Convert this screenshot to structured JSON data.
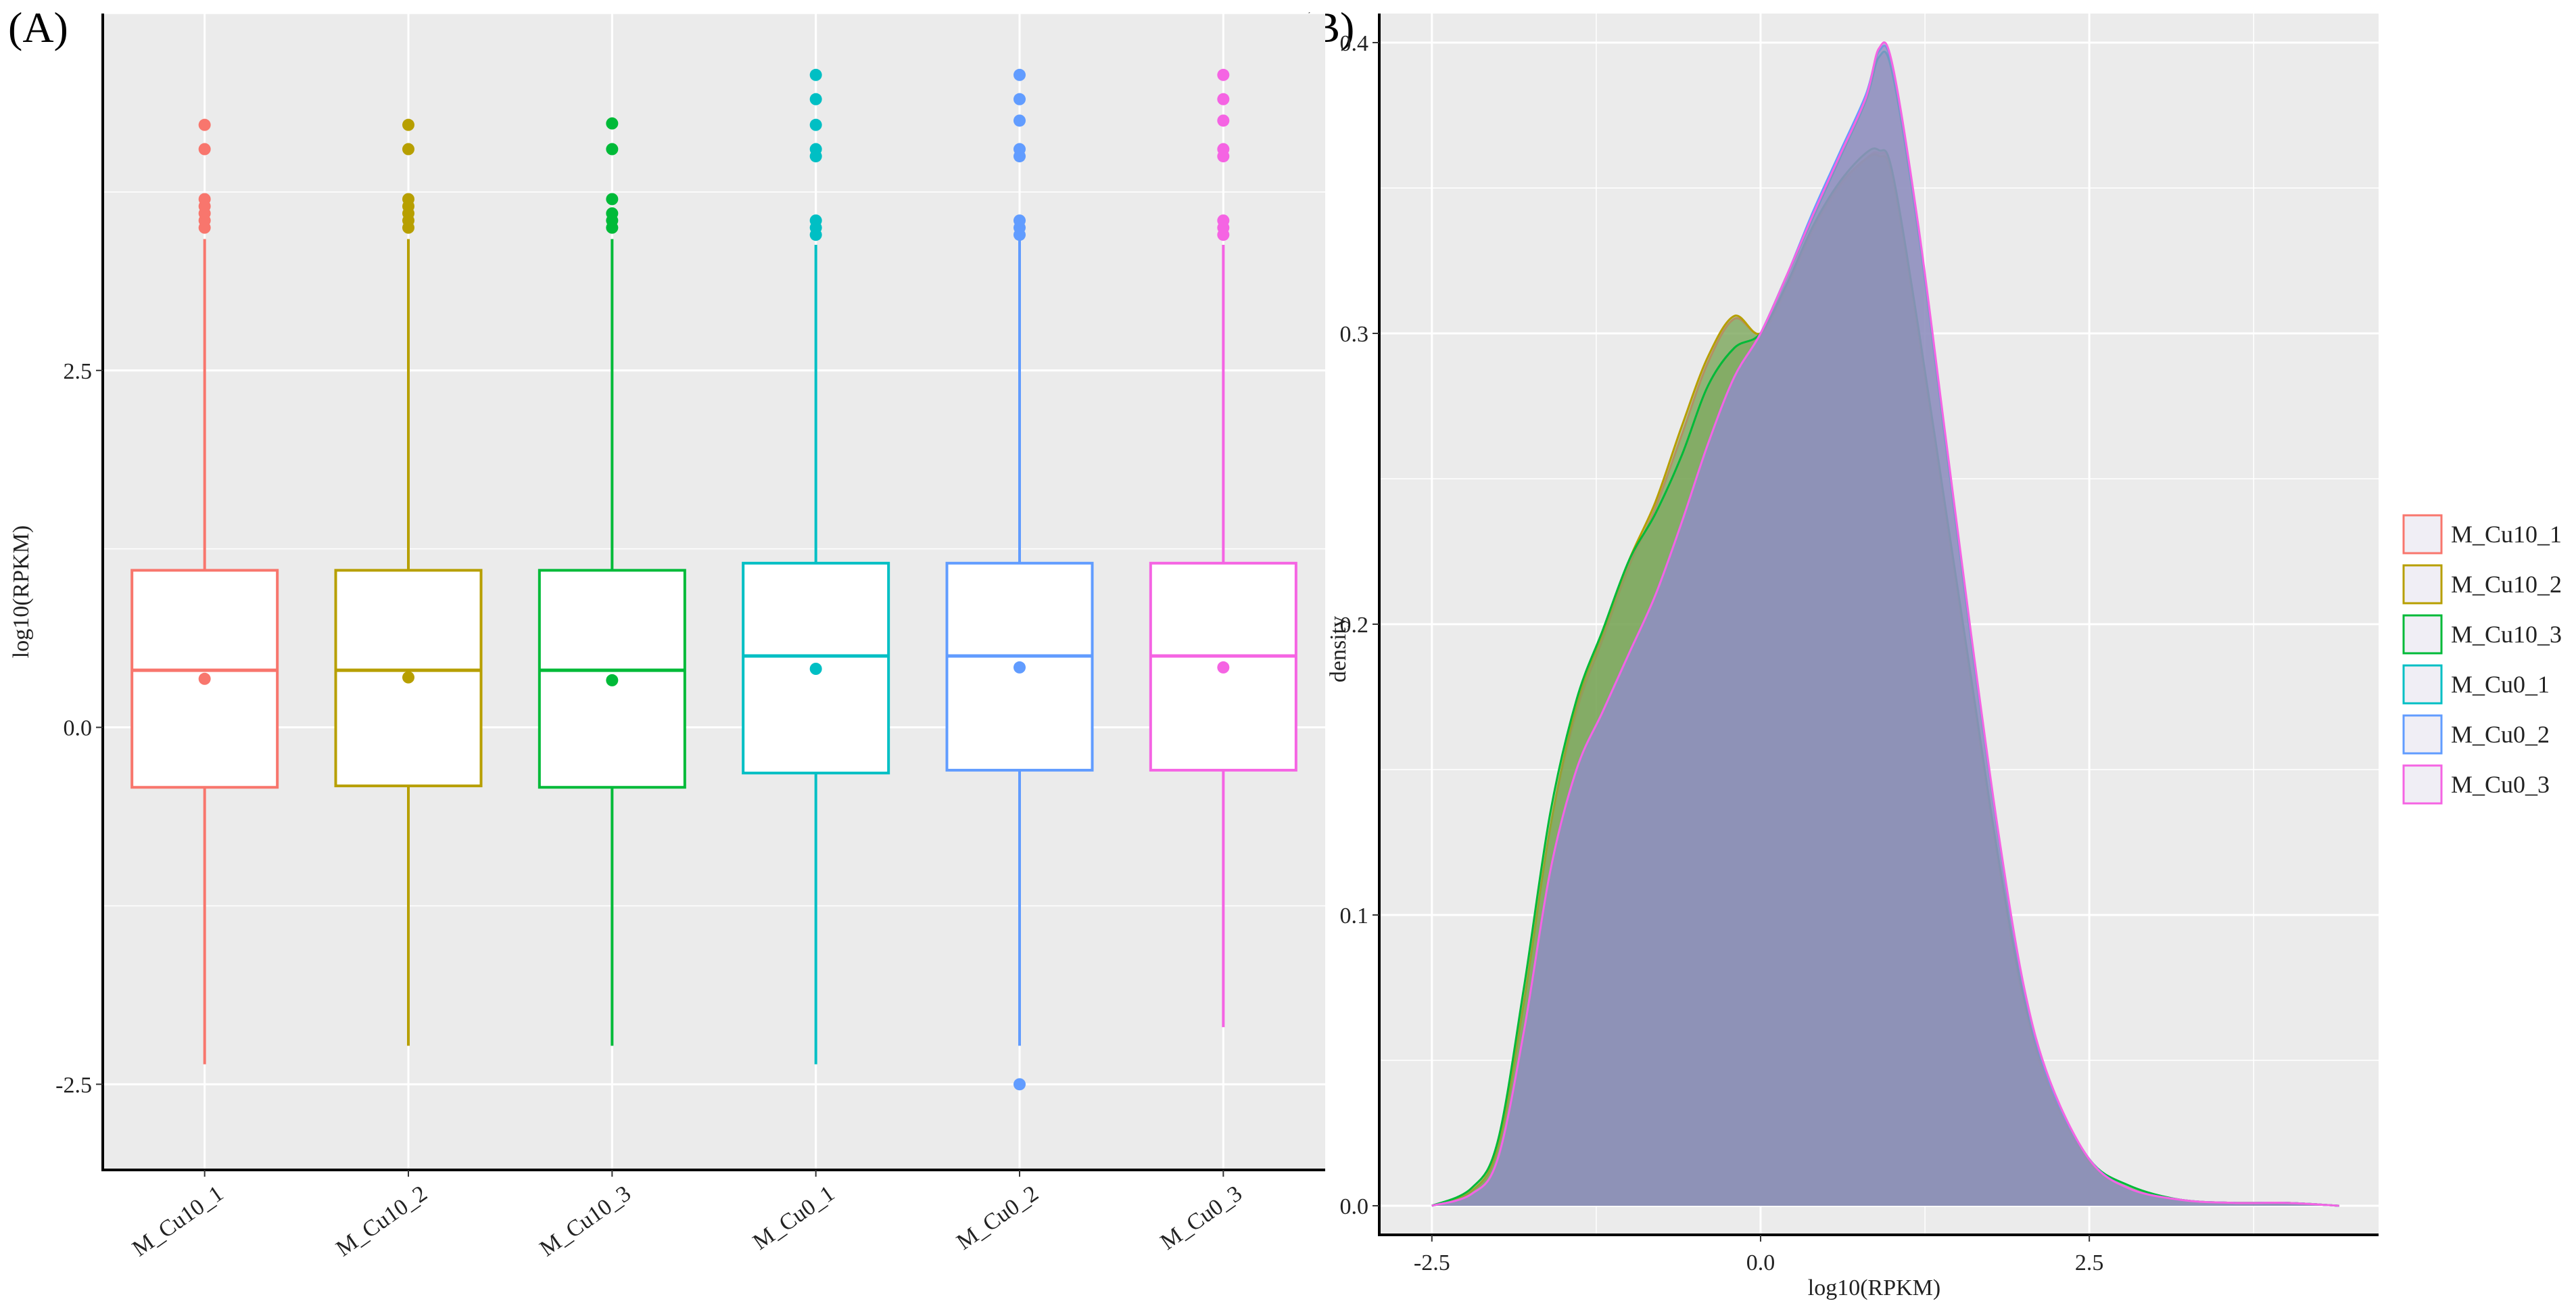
{
  "panels": {
    "a_label": "(A)",
    "b_label": "(B)"
  },
  "chart_data": [
    {
      "type": "box",
      "panel": "(A)",
      "xlabel": "",
      "ylabel": "log10(RPKM)",
      "ylim": [
        -3.1,
        5.0
      ],
      "yticks": [
        -2.5,
        0.0,
        2.5
      ],
      "ytick_labels": [
        "-2.5",
        "0.0",
        "2.5"
      ],
      "grid": true,
      "background": "#ebebeb",
      "categories": [
        "M_Cu10_1",
        "M_Cu10_2",
        "M_Cu10_3",
        "M_Cu0_1",
        "M_Cu0_2",
        "M_Cu0_3"
      ],
      "colors": [
        "#F8766D",
        "#B79F00",
        "#00BA38",
        "#00BFC4",
        "#619CFF",
        "#F564E3"
      ],
      "boxes": [
        {
          "name": "M_Cu10_1",
          "q1": -0.42,
          "median": 0.4,
          "q3": 1.1,
          "whisker_low": -2.36,
          "whisker_high": 3.42,
          "mean": 0.34,
          "outliers": [
            3.5,
            3.55,
            3.6,
            3.65,
            3.7,
            4.05,
            4.22
          ]
        },
        {
          "name": "M_Cu10_2",
          "q1": -0.41,
          "median": 0.4,
          "q3": 1.1,
          "whisker_low": -2.23,
          "whisker_high": 3.42,
          "mean": 0.35,
          "outliers": [
            3.5,
            3.55,
            3.6,
            3.65,
            3.7,
            4.05,
            4.22
          ]
        },
        {
          "name": "M_Cu10_3",
          "q1": -0.42,
          "median": 0.4,
          "q3": 1.1,
          "whisker_low": -2.23,
          "whisker_high": 3.42,
          "mean": 0.33,
          "outliers": [
            3.5,
            3.55,
            3.6,
            3.7,
            4.05,
            4.23
          ]
        },
        {
          "name": "M_Cu0_1",
          "q1": -0.32,
          "median": 0.5,
          "q3": 1.15,
          "whisker_low": -2.36,
          "whisker_high": 3.38,
          "mean": 0.41,
          "outliers": [
            3.45,
            3.5,
            3.55,
            4.0,
            4.05,
            4.22,
            4.4,
            4.57
          ]
        },
        {
          "name": "M_Cu0_2",
          "q1": -0.3,
          "median": 0.5,
          "q3": 1.15,
          "whisker_low": -2.23,
          "whisker_high": 3.42,
          "mean": 0.42,
          "outliers": [
            3.45,
            3.5,
            3.55,
            4.0,
            4.05,
            4.25,
            4.4,
            4.57,
            -2.5
          ]
        },
        {
          "name": "M_Cu0_3",
          "q1": -0.3,
          "median": 0.5,
          "q3": 1.15,
          "whisker_low": -2.1,
          "whisker_high": 3.38,
          "mean": 0.42,
          "outliers": [
            3.45,
            3.5,
            3.55,
            4.0,
            4.05,
            4.25,
            4.4,
            4.57
          ]
        }
      ]
    },
    {
      "type": "area",
      "panel": "(B)",
      "xlabel": "log10(RPKM)",
      "ylabel": "density",
      "xlim": [
        -2.9,
        4.7
      ],
      "ylim": [
        -0.01,
        0.41
      ],
      "xticks": [
        -2.5,
        0.0,
        2.5
      ],
      "xtick_labels": [
        "-2.5",
        "0.0",
        "2.5"
      ],
      "yticks": [
        0.0,
        0.1,
        0.2,
        0.3,
        0.4
      ],
      "ytick_labels": [
        "0.0",
        "0.1",
        "0.2",
        "0.3",
        "0.4"
      ],
      "grid": true,
      "background": "#ebebeb",
      "legend_position": "right",
      "fill_color": "#8f8fbf",
      "x": [
        -2.5,
        -2.2,
        -2.0,
        -1.8,
        -1.6,
        -1.4,
        -1.2,
        -1.0,
        -0.8,
        -0.6,
        -0.4,
        -0.2,
        0.0,
        0.2,
        0.4,
        0.6,
        0.8,
        0.9,
        1.0,
        1.2,
        1.4,
        1.6,
        1.8,
        2.0,
        2.2,
        2.5,
        2.8,
        3.2,
        3.6,
        4.0,
        4.4
      ],
      "series": [
        {
          "name": "M_Cu10_1",
          "color": "#F8766D",
          "values": [
            0.0,
            0.005,
            0.02,
            0.07,
            0.13,
            0.17,
            0.195,
            0.22,
            0.24,
            0.265,
            0.29,
            0.305,
            0.3,
            0.315,
            0.335,
            0.35,
            0.36,
            0.362,
            0.355,
            0.3,
            0.24,
            0.18,
            0.12,
            0.07,
            0.04,
            0.015,
            0.006,
            0.002,
            0.001,
            0.001,
            0.0
          ]
        },
        {
          "name": "M_Cu10_2",
          "color": "#B79F00",
          "values": [
            0.0,
            0.005,
            0.02,
            0.07,
            0.13,
            0.172,
            0.197,
            0.222,
            0.242,
            0.268,
            0.292,
            0.306,
            0.3,
            0.316,
            0.336,
            0.351,
            0.36,
            0.361,
            0.354,
            0.3,
            0.24,
            0.18,
            0.12,
            0.07,
            0.04,
            0.015,
            0.006,
            0.002,
            0.001,
            0.001,
            0.0
          ]
        },
        {
          "name": "M_Cu10_3",
          "color": "#00BA38",
          "values": [
            0.0,
            0.006,
            0.022,
            0.075,
            0.135,
            0.174,
            0.198,
            0.222,
            0.238,
            0.258,
            0.282,
            0.295,
            0.3,
            0.317,
            0.337,
            0.352,
            0.362,
            0.363,
            0.356,
            0.302,
            0.242,
            0.182,
            0.122,
            0.072,
            0.042,
            0.016,
            0.007,
            0.002,
            0.001,
            0.001,
            0.0
          ]
        },
        {
          "name": "M_Cu0_1",
          "color": "#00BFC4",
          "values": [
            0.0,
            0.004,
            0.016,
            0.06,
            0.115,
            0.15,
            0.17,
            0.19,
            0.21,
            0.235,
            0.262,
            0.285,
            0.3,
            0.32,
            0.34,
            0.36,
            0.38,
            0.395,
            0.39,
            0.335,
            0.265,
            0.195,
            0.13,
            0.075,
            0.042,
            0.016,
            0.006,
            0.002,
            0.001,
            0.001,
            0.0
          ]
        },
        {
          "name": "M_Cu0_2",
          "color": "#619CFF",
          "values": [
            0.0,
            0.004,
            0.016,
            0.06,
            0.115,
            0.15,
            0.17,
            0.19,
            0.21,
            0.235,
            0.262,
            0.285,
            0.3,
            0.32,
            0.342,
            0.362,
            0.382,
            0.397,
            0.392,
            0.336,
            0.266,
            0.196,
            0.13,
            0.075,
            0.042,
            0.016,
            0.006,
            0.002,
            0.001,
            0.001,
            0.0
          ]
        },
        {
          "name": "M_Cu0_3",
          "color": "#F564E3",
          "values": [
            0.0,
            0.004,
            0.016,
            0.06,
            0.115,
            0.15,
            0.17,
            0.19,
            0.21,
            0.235,
            0.262,
            0.285,
            0.3,
            0.32,
            0.341,
            0.361,
            0.381,
            0.398,
            0.393,
            0.337,
            0.267,
            0.197,
            0.131,
            0.076,
            0.043,
            0.016,
            0.006,
            0.002,
            0.001,
            0.001,
            0.0
          ]
        }
      ]
    }
  ]
}
